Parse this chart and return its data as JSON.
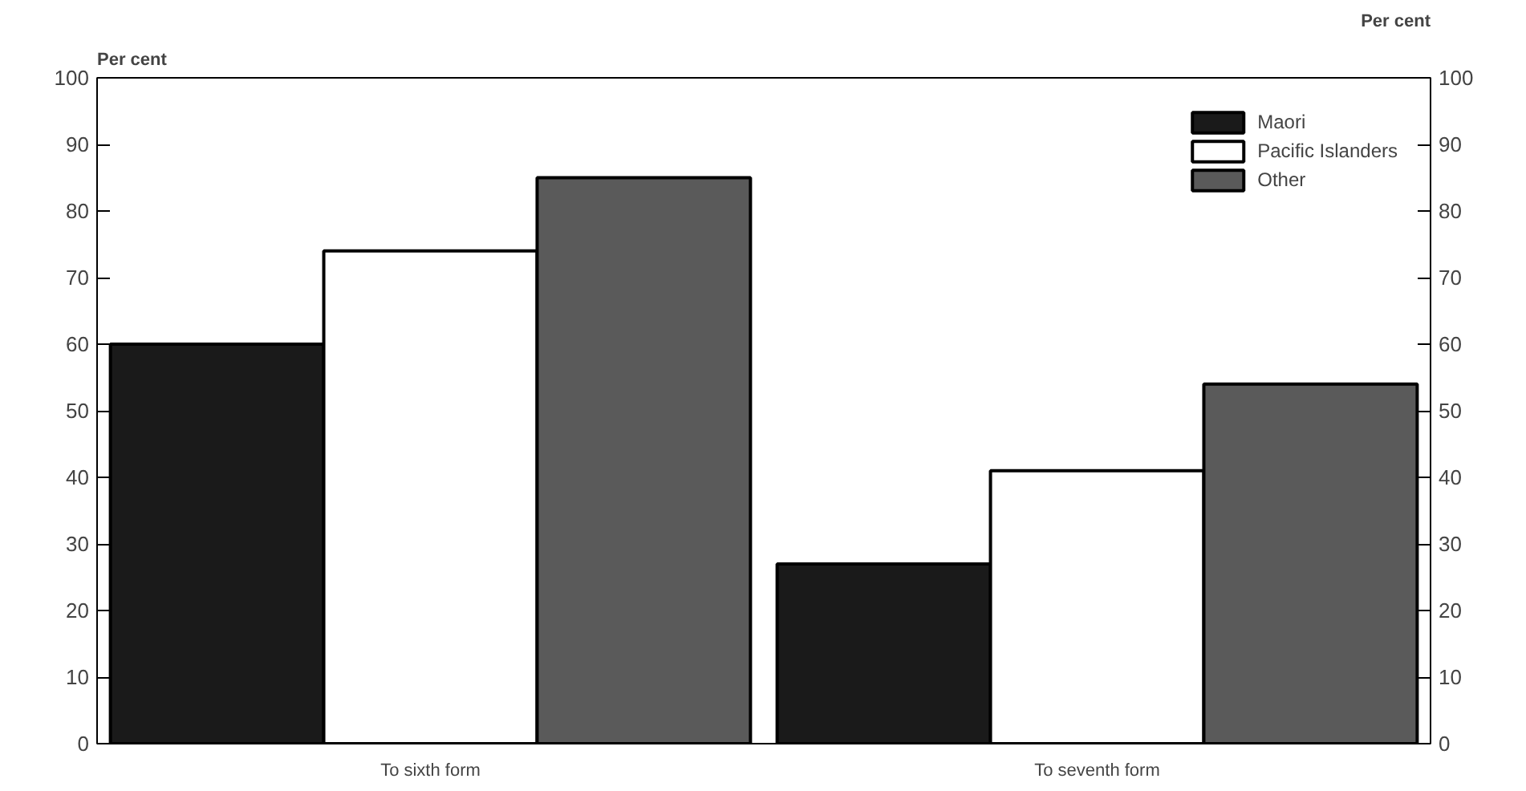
{
  "chart_data": {
    "type": "bar",
    "categories": [
      "To sixth form",
      "To seventh form"
    ],
    "series": [
      {
        "name": "Maori",
        "color": "#1a1a1a",
        "values": [
          60,
          27
        ]
      },
      {
        "name": "Pacific Islanders",
        "color": "#ffffff",
        "values": [
          74,
          41
        ]
      },
      {
        "name": "Other",
        "color": "#5a5a5a",
        "values": [
          85,
          54
        ]
      }
    ],
    "ylabel": "Per cent",
    "y2label": "Per cent",
    "ylim": [
      0,
      100
    ],
    "yticks": [
      0,
      10,
      20,
      30,
      40,
      50,
      60,
      70,
      80,
      90,
      100
    ],
    "y2lim": [
      0,
      100
    ],
    "y2ticks": [
      0,
      10,
      20,
      30,
      40,
      50,
      60,
      70,
      80,
      90,
      100
    ],
    "grid": false,
    "legend": "top right"
  }
}
